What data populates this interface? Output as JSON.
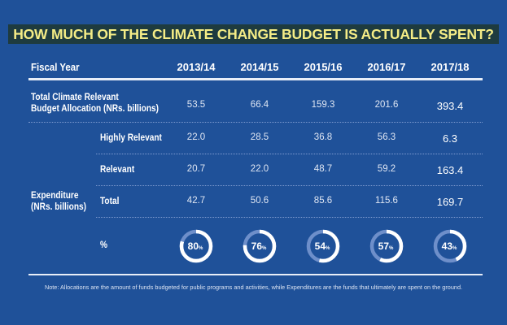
{
  "chart_data": {
    "type": "table",
    "title": "HOW MUCH OF THE CLIMATE CHANGE BUDGET IS ACTUALLY SPENT?",
    "header": "Fiscal Year",
    "years": [
      "2013/14",
      "2014/15",
      "2015/16",
      "2016/17",
      "2017/18"
    ],
    "allocation": {
      "label": "Total Climate Relevant Budget Allocation (NRs. billions)",
      "label_line1": "Total Climate Relevant",
      "label_line2": "Budget Allocation (NRs. billions)",
      "values": [
        "53.5",
        "66.4",
        "159.3",
        "201.6",
        "393.4"
      ]
    },
    "expenditure": {
      "label_line1": "Expenditure",
      "label_line2": "(NRs. billions)",
      "rows": [
        {
          "label": "Highly Relevant",
          "values": [
            "22.0",
            "28.5",
            "36.8",
            "56.3",
            "6.3"
          ]
        },
        {
          "label": "Relevant",
          "values": [
            "20.7",
            "22.0",
            "48.7",
            "59.2",
            "163.4"
          ]
        },
        {
          "label": "Total",
          "values": [
            "42.7",
            "50.6",
            "85.6",
            "115.6",
            "169.7"
          ]
        }
      ],
      "percent_label": "%",
      "percent": [
        80,
        76,
        54,
        57,
        43
      ]
    },
    "colors": {
      "background": "#1f5199",
      "title_band": "#1e3b3f",
      "title_text": "#f4ec86",
      "donut_fill": "#ffffff",
      "donut_track": "#6e8fca"
    }
  },
  "note": "Note: Allocations are the amount of funds budgeted for public programs and activities, while Expenditures are the funds that ultimately are spent on the ground."
}
